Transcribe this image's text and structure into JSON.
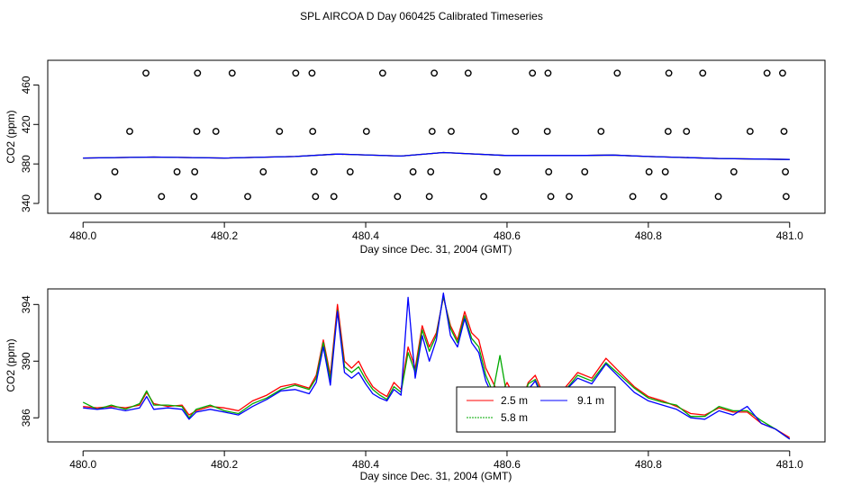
{
  "title": "SPL AIRCOA D  Day 060425  Calibrated Timeseries",
  "chart_data": [
    {
      "type": "line+scatter",
      "xlabel": "Day since Dec. 31, 2004 (GMT)",
      "ylabel": "CO2 (ppm)",
      "xlim": [
        479.95,
        481.05
      ],
      "ylim": [
        330,
        485
      ],
      "xticks": [
        480.0,
        480.2,
        480.4,
        480.6,
        480.8,
        481.0
      ],
      "xtick_labels": [
        "480.0",
        "480.2",
        "480.4",
        "480.6",
        "480.8",
        "481.0"
      ],
      "yticks": [
        340,
        380,
        420,
        460
      ],
      "ytick_labels": [
        "340",
        "380",
        "420",
        "460"
      ],
      "calibration_points": {
        "name": "calibration standards",
        "color": "#000000",
        "x": [
          480.089,
          480.162,
          480.211,
          480.301,
          480.324,
          480.424,
          480.497,
          480.545,
          480.636,
          480.658,
          480.756,
          480.829,
          480.877,
          480.968,
          480.99,
          480.066,
          480.161,
          480.188,
          480.278,
          480.325,
          480.401,
          480.494,
          480.521,
          480.612,
          480.657,
          480.733,
          480.828,
          480.854,
          480.944,
          480.992,
          480.045,
          480.133,
          480.158,
          480.255,
          480.327,
          480.378,
          480.467,
          480.492,
          480.586,
          480.659,
          480.71,
          480.801,
          480.824,
          480.921,
          480.994,
          480.021,
          480.111,
          480.157,
          480.233,
          480.329,
          480.355,
          480.445,
          480.49,
          480.567,
          480.662,
          480.688,
          480.778,
          480.822,
          480.899,
          480.995
        ],
        "y": [
          472,
          472,
          472,
          472,
          472,
          472,
          472,
          472,
          472,
          472,
          472,
          472,
          472,
          472,
          472,
          413,
          413,
          413,
          413,
          413,
          413,
          413,
          413,
          413,
          413,
          413,
          413,
          413,
          413,
          413,
          372,
          372,
          372,
          372,
          372,
          372,
          372,
          372,
          372,
          372,
          372,
          372,
          372,
          372,
          372,
          347,
          347,
          347,
          347,
          347,
          347,
          347,
          347,
          347,
          347,
          347,
          347,
          347,
          347,
          347
        ]
      },
      "series": [
        {
          "name": "2.5 m",
          "color": "#ff0000",
          "x": [
            480.0,
            480.1,
            480.2,
            480.3,
            480.36,
            480.45,
            480.51,
            480.6,
            480.7,
            480.75,
            480.8,
            480.9,
            481.0
          ],
          "values": [
            386,
            387,
            386,
            387.5,
            390,
            388,
            391.5,
            388.5,
            388.5,
            389,
            387.5,
            385.5,
            384.5
          ]
        },
        {
          "name": "5.8 m",
          "color": "#00aa00",
          "x": [
            480.0,
            480.1,
            480.2,
            480.3,
            480.36,
            480.45,
            480.51,
            480.6,
            480.7,
            480.75,
            480.8,
            480.9,
            481.0
          ],
          "values": [
            386,
            387,
            386,
            387.5,
            390,
            388,
            391.5,
            388.5,
            388.5,
            389,
            387.5,
            385.5,
            384.5
          ]
        },
        {
          "name": "9.1 m",
          "color": "#0000ff",
          "x": [
            480.0,
            480.1,
            480.2,
            480.3,
            480.36,
            480.45,
            480.51,
            480.6,
            480.7,
            480.75,
            480.8,
            480.9,
            481.0
          ],
          "values": [
            386,
            387,
            386,
            387.5,
            390,
            388,
            391.5,
            388.5,
            388.5,
            389,
            387.5,
            385.5,
            384.5
          ]
        }
      ]
    },
    {
      "type": "line",
      "xlabel": "Day since Dec. 31, 2004 (GMT)",
      "ylabel": "CO2 (ppm)",
      "xlim": [
        479.95,
        481.05
      ],
      "ylim": [
        384.3,
        395.1
      ],
      "xticks": [
        480.0,
        480.2,
        480.4,
        480.6,
        480.8,
        481.0
      ],
      "xtick_labels": [
        "480.0",
        "480.2",
        "480.4",
        "480.6",
        "480.8",
        "481.0"
      ],
      "yticks": [
        386,
        390,
        394
      ],
      "ytick_labels": [
        "386",
        "390",
        "394"
      ],
      "legend": {
        "position": "bottom-center",
        "entries": [
          "2.5 m",
          "9.1 m",
          "5.8 m"
        ]
      },
      "series": [
        {
          "name": "2.5 m",
          "color": "#ff0000",
          "x": [
            480.0,
            480.02,
            480.04,
            480.06,
            480.08,
            480.09,
            480.1,
            480.12,
            480.14,
            480.15,
            480.16,
            480.18,
            480.2,
            480.22,
            480.24,
            480.26,
            480.28,
            480.3,
            480.32,
            480.33,
            480.34,
            480.35,
            480.36,
            480.37,
            480.38,
            480.39,
            480.4,
            480.41,
            480.42,
            480.43,
            480.44,
            480.45,
            480.46,
            480.47,
            480.48,
            480.49,
            480.5,
            480.51,
            480.52,
            480.53,
            480.54,
            480.55,
            480.56,
            480.57,
            480.58,
            480.59,
            480.6,
            480.61,
            480.62,
            480.63,
            480.64,
            480.65,
            480.66,
            480.67,
            480.68,
            480.7,
            480.72,
            480.74,
            480.76,
            480.78,
            480.8,
            480.82,
            480.84,
            480.86,
            480.88,
            480.9,
            480.92,
            480.94,
            480.96,
            480.98,
            481.0
          ],
          "values": [
            386.8,
            386.7,
            386.8,
            386.7,
            386.9,
            387.8,
            387.0,
            386.8,
            386.9,
            386.2,
            386.5,
            386.8,
            386.7,
            386.5,
            387.2,
            387.6,
            388.2,
            388.4,
            388.1,
            389.0,
            391.5,
            389.0,
            394.0,
            390.0,
            389.5,
            390.0,
            389.0,
            388.2,
            387.8,
            387.5,
            388.5,
            388.0,
            391.0,
            389.5,
            392.5,
            391.0,
            392.0,
            394.5,
            392.5,
            391.5,
            393.5,
            392.0,
            391.5,
            389.5,
            388.5,
            387.5,
            388.5,
            387.5,
            387.0,
            388.5,
            389.0,
            387.8,
            387.5,
            388.0,
            388.0,
            389.2,
            388.8,
            390.2,
            389.2,
            388.2,
            387.5,
            387.2,
            386.8,
            386.3,
            386.2,
            386.7,
            386.4,
            386.4,
            385.6,
            385.2,
            384.6
          ]
        },
        {
          "name": "5.8 m",
          "color": "#00aa00",
          "x": [
            480.0,
            480.02,
            480.04,
            480.06,
            480.08,
            480.09,
            480.1,
            480.12,
            480.14,
            480.15,
            480.16,
            480.18,
            480.2,
            480.22,
            480.24,
            480.26,
            480.28,
            480.3,
            480.32,
            480.33,
            480.34,
            480.35,
            480.36,
            480.37,
            480.38,
            480.39,
            480.4,
            480.41,
            480.42,
            480.43,
            480.44,
            480.45,
            480.46,
            480.47,
            480.48,
            480.49,
            480.5,
            480.51,
            480.52,
            480.53,
            480.54,
            480.55,
            480.56,
            480.57,
            480.58,
            480.59,
            480.6,
            480.61,
            480.62,
            480.63,
            480.64,
            480.65,
            480.66,
            480.67,
            480.68,
            480.7,
            480.72,
            480.74,
            480.76,
            480.78,
            480.8,
            480.82,
            480.84,
            480.86,
            480.88,
            480.9,
            480.92,
            480.94,
            480.96,
            480.98,
            481.0
          ],
          "values": [
            387.1,
            386.6,
            386.9,
            386.6,
            387.0,
            387.9,
            386.9,
            386.9,
            386.8,
            386.0,
            386.6,
            386.9,
            386.5,
            386.3,
            387.0,
            387.4,
            388.0,
            388.3,
            388.0,
            388.8,
            391.3,
            388.7,
            393.6,
            389.6,
            389.2,
            389.6,
            388.7,
            388.0,
            387.6,
            387.3,
            388.2,
            387.8,
            390.6,
            389.2,
            392.2,
            390.7,
            391.8,
            394.6,
            392.3,
            391.3,
            393.2,
            391.6,
            391.0,
            389.0,
            387.8,
            390.4,
            387.5,
            388.0,
            386.8,
            388.4,
            388.7,
            387.6,
            387.3,
            387.9,
            387.8,
            389.0,
            388.6,
            389.9,
            389.0,
            388.1,
            387.4,
            387.1,
            386.9,
            386.1,
            386.1,
            386.8,
            386.5,
            386.5,
            385.8,
            385.2,
            384.5
          ]
        },
        {
          "name": "9.1 m",
          "color": "#0000ff",
          "x": [
            480.0,
            480.02,
            480.04,
            480.06,
            480.08,
            480.09,
            480.1,
            480.12,
            480.14,
            480.15,
            480.16,
            480.18,
            480.2,
            480.22,
            480.24,
            480.26,
            480.28,
            480.3,
            480.32,
            480.33,
            480.34,
            480.35,
            480.36,
            480.37,
            480.38,
            480.39,
            480.4,
            480.41,
            480.42,
            480.43,
            480.44,
            480.45,
            480.46,
            480.47,
            480.48,
            480.49,
            480.5,
            480.51,
            480.52,
            480.53,
            480.54,
            480.55,
            480.56,
            480.57,
            480.58,
            480.59,
            480.6,
            480.61,
            480.62,
            480.63,
            480.64,
            480.65,
            480.66,
            480.67,
            480.68,
            480.7,
            480.72,
            480.74,
            480.76,
            480.78,
            480.8,
            480.82,
            480.84,
            480.86,
            480.88,
            480.9,
            480.92,
            480.94,
            480.96,
            480.98,
            481.0
          ],
          "values": [
            386.7,
            386.6,
            386.7,
            386.5,
            386.7,
            387.5,
            386.6,
            386.7,
            386.6,
            385.9,
            386.4,
            386.6,
            386.4,
            386.2,
            386.8,
            387.3,
            387.9,
            388.0,
            387.7,
            388.5,
            391.0,
            388.3,
            393.5,
            389.2,
            388.8,
            389.2,
            388.4,
            387.7,
            387.4,
            387.2,
            388.0,
            387.6,
            394.5,
            388.8,
            391.8,
            390.0,
            391.5,
            394.8,
            391.8,
            391.0,
            393.0,
            391.3,
            390.6,
            388.6,
            387.5,
            387.4,
            388.0,
            387.3,
            386.7,
            388.0,
            388.6,
            387.4,
            387.2,
            387.7,
            387.8,
            388.8,
            388.4,
            389.8,
            388.8,
            387.8,
            387.2,
            386.9,
            386.6,
            386.0,
            385.9,
            386.5,
            386.2,
            386.8,
            385.6,
            385.2,
            384.5
          ]
        }
      ]
    }
  ]
}
